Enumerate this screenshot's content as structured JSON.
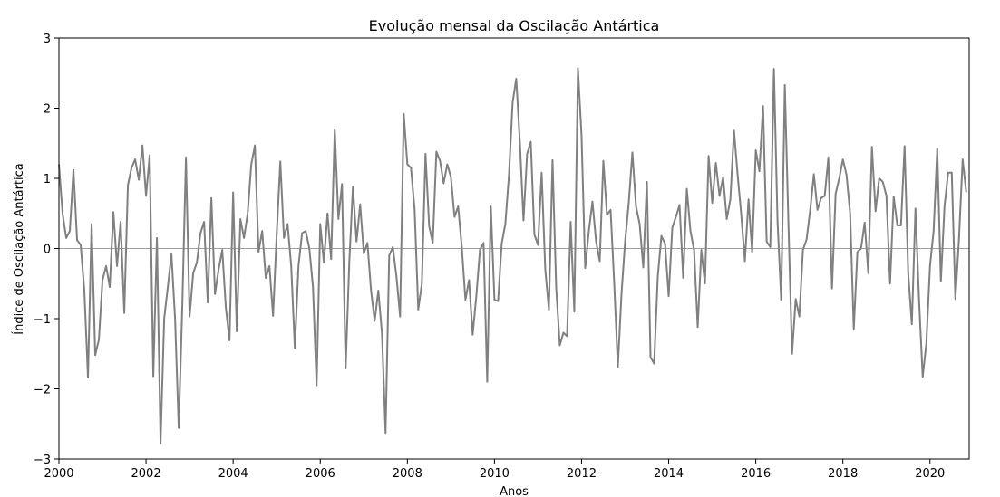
{
  "chart_data": {
    "type": "line",
    "title": "Evolução mensal da Oscilação Antártica",
    "xlabel": "Anos",
    "ylabel": "Índice de Oscilação Antártica",
    "xlim": [
      2000.0,
      2020.9
    ],
    "ylim": [
      -3,
      3
    ],
    "x_ticks": [
      "2000",
      "2002",
      "2004",
      "2006",
      "2008",
      "2010",
      "2012",
      "2014",
      "2016",
      "2018",
      "2020"
    ],
    "y_ticks": [
      "−3",
      "−2",
      "−1",
      "0",
      "1",
      "2",
      "3"
    ],
    "zero_line": true,
    "line_color": "#808080",
    "series": [
      {
        "x_start": 2000.0,
        "x_step": 0.0833333,
        "values": [
          1.2,
          0.5,
          0.15,
          0.25,
          1.12,
          0.12,
          0.05,
          -0.6,
          -1.84,
          0.35,
          -1.52,
          -1.3,
          -0.45,
          -0.25,
          -0.55,
          0.52,
          -0.25,
          0.38,
          -0.92,
          0.9,
          1.15,
          1.27,
          0.98,
          1.47,
          0.75,
          1.33,
          -1.82,
          0.15,
          -2.78,
          -1.0,
          -0.55,
          -0.08,
          -1.0,
          -2.56,
          -0.8,
          1.3,
          -0.97,
          -0.35,
          -0.2,
          0.22,
          0.38,
          -0.77,
          0.72,
          -0.65,
          -0.3,
          -0.02,
          -0.85,
          -1.31,
          0.8,
          -1.18,
          0.42,
          0.15,
          0.5,
          1.2,
          1.47,
          -0.05,
          0.25,
          -0.42,
          -0.25,
          -0.96,
          0.2,
          1.24,
          0.15,
          0.35,
          -0.25,
          -1.42,
          -0.25,
          0.22,
          0.25,
          0.0,
          -0.55,
          -1.95,
          0.35,
          -0.2,
          0.5,
          -0.15,
          1.7,
          0.42,
          0.92,
          -1.71,
          -0.2,
          0.88,
          0.1,
          0.63,
          -0.07,
          0.08,
          -0.6,
          -1.03,
          -0.6,
          -1.2,
          -2.63,
          -0.1,
          0.02,
          -0.4,
          -0.97,
          1.92,
          1.2,
          1.15,
          0.55,
          -0.87,
          -0.5,
          1.35,
          0.32,
          0.08,
          1.38,
          1.25,
          0.93,
          1.2,
          1.02,
          0.45,
          0.6,
          0.02,
          -0.73,
          -0.45,
          -1.23,
          -0.68,
          -0.02,
          0.08,
          -1.9,
          0.6,
          -0.73,
          -0.75,
          0.07,
          0.35,
          1.05,
          2.08,
          2.42,
          1.52,
          0.4,
          1.35,
          1.52,
          0.2,
          0.05,
          1.08,
          -0.3,
          -0.87,
          1.26,
          -0.55,
          -1.38,
          -1.2,
          -1.25,
          0.38,
          -0.9,
          2.57,
          1.6,
          -0.28,
          0.25,
          0.67,
          0.1,
          -0.18,
          1.25,
          0.48,
          0.55,
          -0.5,
          -1.69,
          -0.65,
          0.1,
          0.65,
          1.37,
          0.6,
          0.35,
          -0.27,
          0.95,
          -1.55,
          -1.64,
          -0.4,
          0.18,
          0.07,
          -0.68,
          0.3,
          0.45,
          0.62,
          -0.42,
          0.85,
          0.25,
          -0.02,
          -1.12,
          -0.02,
          -0.5,
          1.32,
          0.65,
          1.22,
          0.75,
          1.02,
          0.42,
          0.7,
          1.68,
          1.05,
          0.48,
          -0.18,
          0.7,
          -0.05,
          1.4,
          1.1,
          2.03,
          0.1,
          0.02,
          2.56,
          0.38,
          -0.73,
          2.33,
          0.35,
          -1.5,
          -0.72,
          -0.97,
          -0.02,
          0.13,
          0.55,
          1.06,
          0.55,
          0.72,
          0.75,
          1.3,
          -0.57,
          0.78,
          1.0,
          1.27,
          1.05,
          0.5,
          -1.15,
          -0.05,
          0.0,
          0.37,
          -0.35,
          1.45,
          0.53,
          1.0,
          0.95,
          0.75,
          -0.5,
          0.74,
          0.33,
          0.33,
          1.46,
          -0.35,
          -1.08,
          0.57,
          -0.75,
          -1.83,
          -1.35,
          -0.25,
          0.25,
          1.42,
          -0.47,
          0.6,
          1.08,
          1.08,
          -0.72,
          0.15,
          1.27,
          0.8
        ]
      }
    ]
  }
}
